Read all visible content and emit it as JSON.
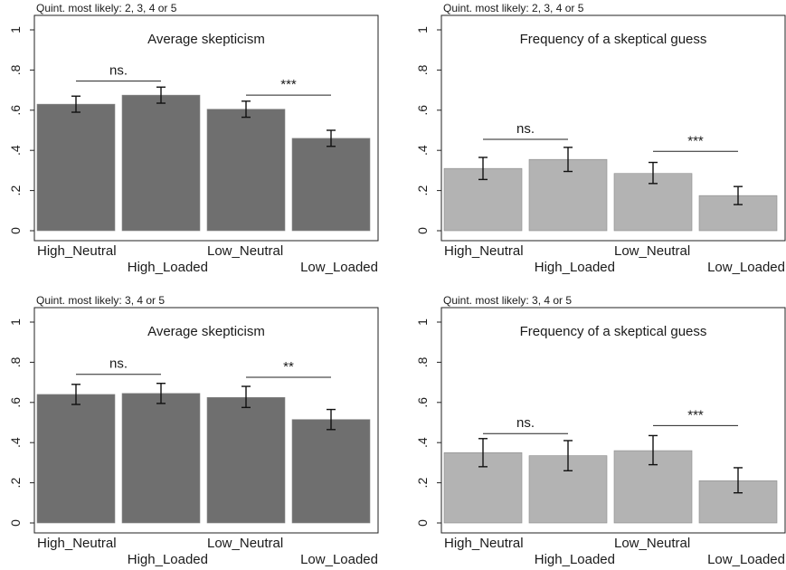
{
  "chart_data": [
    {
      "type": "bar",
      "note": "Quint. most likely: 2, 3, 4 or 5",
      "title": "Average skepticism",
      "categories": [
        "High_Neutral",
        "High_Loaded",
        "Low_Neutral",
        "Low_Loaded"
      ],
      "values": [
        0.63,
        0.675,
        0.605,
        0.46
      ],
      "error_low": [
        0.59,
        0.635,
        0.565,
        0.42
      ],
      "error_high": [
        0.67,
        0.715,
        0.645,
        0.5
      ],
      "yticks": [
        "0",
        ".2",
        ".4",
        ".6",
        ".8",
        "1"
      ],
      "ylim": [
        0,
        1
      ],
      "bar_color": "#6f6f6f",
      "significance": [
        {
          "label": "ns.",
          "from": 0,
          "to": 1,
          "y": 0.745
        },
        {
          "label": "***",
          "from": 2,
          "to": 3,
          "y": 0.675
        }
      ]
    },
    {
      "type": "bar",
      "note": "Quint. most likely: 2, 3, 4 or 5",
      "title": "Frequency of a skeptical guess",
      "categories": [
        "High_Neutral",
        "High_Loaded",
        "Low_Neutral",
        "Low_Loaded"
      ],
      "values": [
        0.31,
        0.355,
        0.285,
        0.175
      ],
      "error_low": [
        0.255,
        0.295,
        0.235,
        0.13
      ],
      "error_high": [
        0.365,
        0.415,
        0.34,
        0.22
      ],
      "yticks": [
        "0",
        ".2",
        ".4",
        ".6",
        ".8",
        "1"
      ],
      "ylim": [
        0,
        1
      ],
      "bar_color": "#b3b3b3",
      "significance": [
        {
          "label": "ns.",
          "from": 0,
          "to": 1,
          "y": 0.455
        },
        {
          "label": "***",
          "from": 2,
          "to": 3,
          "y": 0.395
        }
      ]
    },
    {
      "type": "bar",
      "note": "Quint. most likely: 3, 4 or 5",
      "title": "Average skepticism",
      "categories": [
        "High_Neutral",
        "High_Loaded",
        "Low_Neutral",
        "Low_Loaded"
      ],
      "values": [
        0.64,
        0.645,
        0.625,
        0.515
      ],
      "error_low": [
        0.59,
        0.595,
        0.575,
        0.465
      ],
      "error_high": [
        0.69,
        0.695,
        0.68,
        0.565
      ],
      "yticks": [
        "0",
        ".2",
        ".4",
        ".6",
        ".8",
        "1"
      ],
      "ylim": [
        0,
        1
      ],
      "bar_color": "#6f6f6f",
      "significance": [
        {
          "label": "ns.",
          "from": 0,
          "to": 1,
          "y": 0.74
        },
        {
          "label": "**",
          "from": 2,
          "to": 3,
          "y": 0.725
        }
      ]
    },
    {
      "type": "bar",
      "note": "Quint. most likely: 3, 4 or 5",
      "title": "Frequency of a skeptical guess",
      "categories": [
        "High_Neutral",
        "High_Loaded",
        "Low_Neutral",
        "Low_Loaded"
      ],
      "values": [
        0.35,
        0.335,
        0.36,
        0.21
      ],
      "error_low": [
        0.28,
        0.26,
        0.29,
        0.15
      ],
      "error_high": [
        0.42,
        0.41,
        0.435,
        0.275
      ],
      "yticks": [
        "0",
        ".2",
        ".4",
        ".6",
        ".8",
        "1"
      ],
      "ylim": [
        0,
        1
      ],
      "bar_color": "#b3b3b3",
      "significance": [
        {
          "label": "ns.",
          "from": 0,
          "to": 1,
          "y": 0.445
        },
        {
          "label": "***",
          "from": 2,
          "to": 3,
          "y": 0.485
        }
      ]
    }
  ]
}
